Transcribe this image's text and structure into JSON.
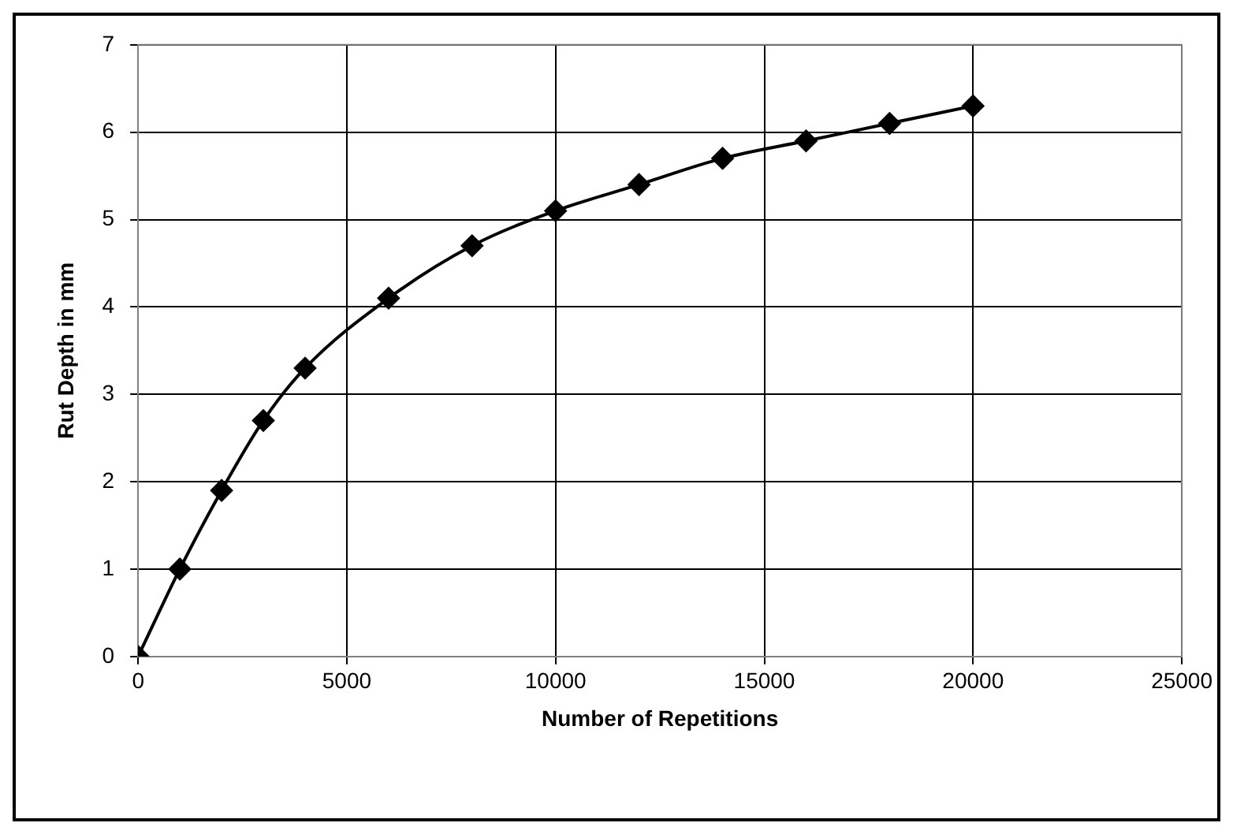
{
  "chart_data": {
    "type": "line",
    "xlabel": "Number of Repetitions",
    "ylabel": "Rut Depth in mm",
    "x": [
      0,
      1000,
      2000,
      3000,
      4000,
      6000,
      8000,
      10000,
      12000,
      14000,
      16000,
      18000,
      20000
    ],
    "series": [
      {
        "color": "#000000",
        "values": [
          0,
          1,
          1.9,
          2.7,
          3.3,
          4.1,
          4.7,
          5.1,
          5.4,
          5.7,
          5.9,
          6.1,
          6.3
        ]
      }
    ],
    "xlim": [
      0,
      25000
    ],
    "xticks": [
      0,
      5000,
      10000,
      15000,
      20000,
      25000
    ],
    "ylim": [
      0,
      7
    ],
    "yticks": [
      0,
      1,
      2,
      3,
      4,
      5,
      6,
      7
    ],
    "grid": true,
    "legend": false,
    "marker": "diamond",
    "line_style": "solid"
  }
}
